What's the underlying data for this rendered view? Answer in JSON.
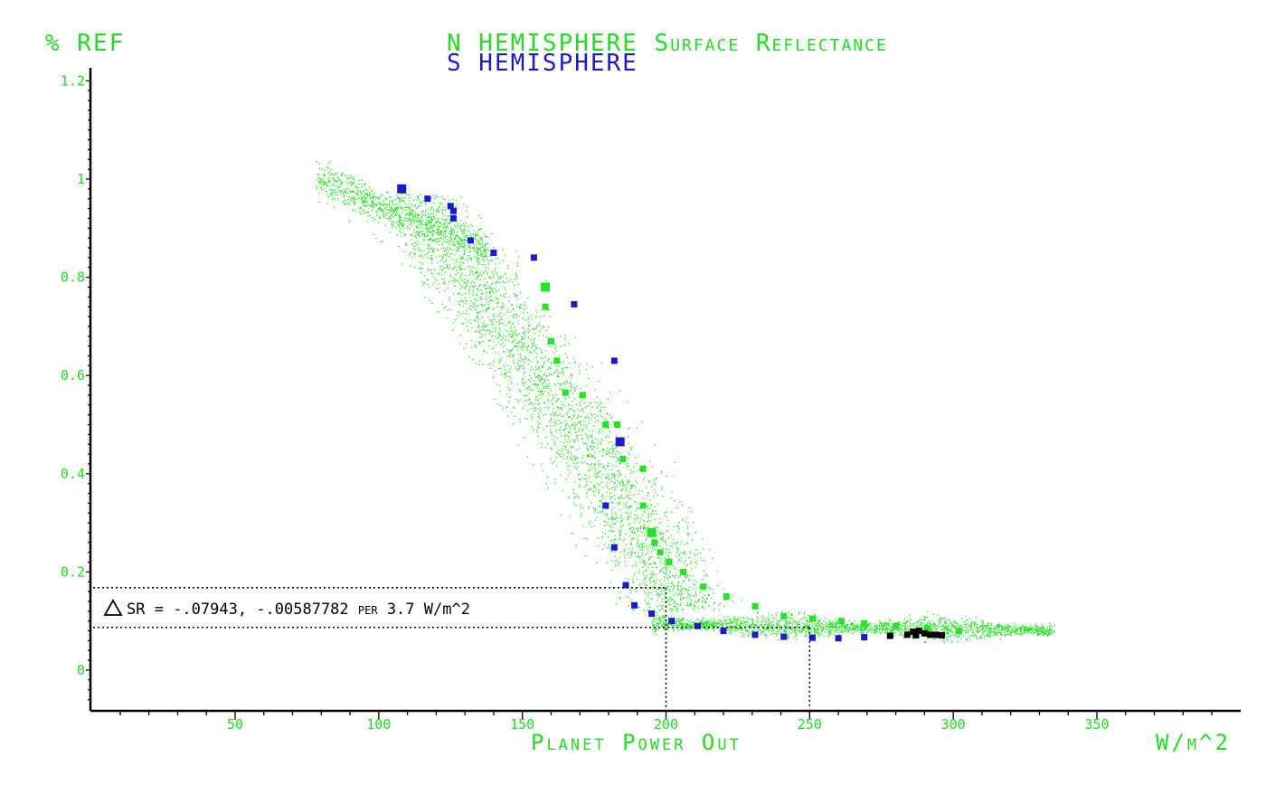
{
  "colors": {
    "north": "#22e622",
    "south": "#1a1acc",
    "axis": "#000000",
    "text_green": "#22dd22",
    "black_marks": "#000000"
  },
  "header": {
    "y_unit": "% REF",
    "title_north": "N HEMISPHERE Surface Reflectance",
    "title_south": "S HEMISPHERE"
  },
  "chart_data": {
    "type": "scatter",
    "title": "N HEMISPHERE Surface Reflectance",
    "subtitle": "S HEMISPHERE",
    "xlabel": "Planet Power Out",
    "x_unit": "W/m^2",
    "ylabel": "% REF",
    "xlim": [
      0,
      395
    ],
    "ylim": [
      -0.08,
      1.22
    ],
    "x_ticks": [
      "50",
      "100",
      "150",
      "200",
      "250",
      "300",
      "350"
    ],
    "x_tick_values": [
      50,
      100,
      150,
      200,
      250,
      300,
      350
    ],
    "y_ticks": [
      "0",
      "0.2",
      "0.4",
      "0.6",
      "0.8",
      "1",
      "1.2"
    ],
    "y_tick_values": [
      0,
      0.2,
      0.4,
      0.6,
      0.8,
      1.0,
      1.2
    ],
    "grid": false,
    "legend": "top-center title",
    "series": [
      {
        "name": "N HEMISPHERE",
        "color": "#22e622",
        "points": [
          [
            158,
            0.78
          ],
          [
            158,
            0.74
          ],
          [
            160,
            0.67
          ],
          [
            162,
            0.63
          ],
          [
            165,
            0.565
          ],
          [
            171,
            0.56
          ],
          [
            179,
            0.5
          ],
          [
            183,
            0.5
          ],
          [
            185,
            0.43
          ],
          [
            192,
            0.41
          ],
          [
            192,
            0.335
          ],
          [
            195,
            0.28
          ],
          [
            196,
            0.26
          ],
          [
            198,
            0.24
          ],
          [
            201,
            0.22
          ],
          [
            206,
            0.2
          ],
          [
            213,
            0.17
          ],
          [
            221,
            0.15
          ],
          [
            231,
            0.13
          ],
          [
            241,
            0.11
          ],
          [
            251,
            0.105
          ],
          [
            261,
            0.1
          ],
          [
            269,
            0.095
          ],
          [
            280,
            0.09
          ],
          [
            291,
            0.085
          ],
          [
            302,
            0.08
          ]
        ]
      },
      {
        "name": "S HEMISPHERE",
        "color": "#1a1acc",
        "points": [
          [
            108,
            0.98
          ],
          [
            117,
            0.96
          ],
          [
            125,
            0.945
          ],
          [
            126,
            0.935
          ],
          [
            126,
            0.92
          ],
          [
            132,
            0.875
          ],
          [
            140,
            0.85
          ],
          [
            154,
            0.84
          ],
          [
            168,
            0.745
          ],
          [
            182,
            0.63
          ],
          [
            184,
            0.465
          ],
          [
            179,
            0.335
          ],
          [
            182,
            0.25
          ],
          [
            186,
            0.173
          ],
          [
            189,
            0.132
          ],
          [
            195,
            0.115
          ],
          [
            202,
            0.1
          ],
          [
            211,
            0.09
          ],
          [
            220,
            0.08
          ],
          [
            231,
            0.072
          ],
          [
            241,
            0.068
          ],
          [
            251,
            0.066
          ],
          [
            260,
            0.065
          ],
          [
            269,
            0.067
          ]
        ]
      },
      {
        "name": "black markers",
        "color": "#000000",
        "points": [
          [
            278,
            0.07
          ],
          [
            284,
            0.072
          ],
          [
            286,
            0.078
          ],
          [
            288,
            0.08
          ],
          [
            290,
            0.075
          ],
          [
            292,
            0.072
          ],
          [
            294,
            0.072
          ],
          [
            296,
            0.071
          ],
          [
            287,
            0.071
          ]
        ]
      }
    ],
    "cloud": {
      "north_hemisphere_points": 14000,
      "description_from_picture": "dense scatter of green dots"
    },
    "annotation": {
      "text": "SR = -.07943, -.00587782 per 3.7 W/m^2",
      "y_levels": [
        0.168,
        0.087
      ],
      "x_levels": [
        200,
        250
      ]
    }
  }
}
